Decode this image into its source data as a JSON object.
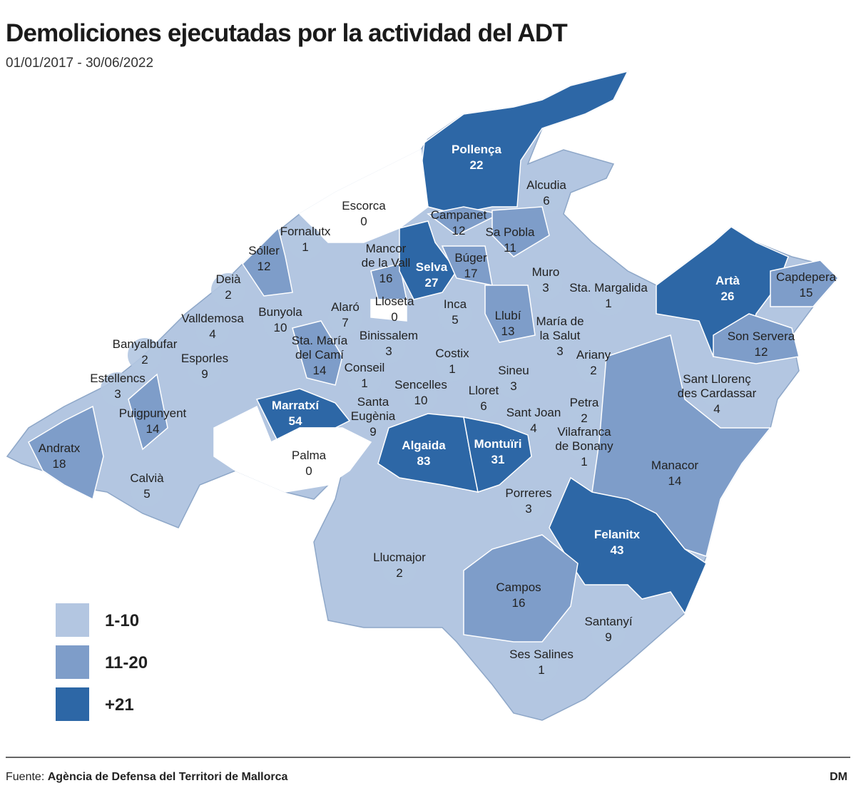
{
  "title": "Demoliciones ejecutadas por la actividad del ADT",
  "subtitle": "01/01/2017 - 30/06/2022",
  "legend": [
    {
      "label": "1-10",
      "color": "#b3c6e1"
    },
    {
      "label": "11-20",
      "color": "#7e9dc9"
    },
    {
      "label": "+21",
      "color": "#2d67a6"
    }
  ],
  "regions": [
    {
      "name": [
        "Pollença"
      ],
      "value": 22,
      "color": "#2d67a6"
    },
    {
      "name": [
        "Alcudia"
      ],
      "value": 6,
      "color": "#b3c6e1"
    },
    {
      "name": [
        "Escorca"
      ],
      "value": 0,
      "color": "#ffffff"
    },
    {
      "name": [
        "Campanet"
      ],
      "value": 12,
      "color": "#7e9dc9"
    },
    {
      "name": [
        "Sa Pobla"
      ],
      "value": 11,
      "color": "#7e9dc9"
    },
    {
      "name": [
        "Fornalutx"
      ],
      "value": 1,
      "color": "#b3c6e1"
    },
    {
      "name": [
        "Sóller"
      ],
      "value": 12,
      "color": "#7e9dc9"
    },
    {
      "name": [
        "Mancor",
        "de la Vall"
      ],
      "value": 16,
      "color": "#7e9dc9"
    },
    {
      "name": [
        "Selva"
      ],
      "value": 27,
      "color": "#2d67a6"
    },
    {
      "name": [
        "Búger"
      ],
      "value": 17,
      "color": "#7e9dc9"
    },
    {
      "name": [
        "Deià"
      ],
      "value": 2,
      "color": "#b3c6e1"
    },
    {
      "name": [
        "Muro"
      ],
      "value": 3,
      "color": "#b3c6e1"
    },
    {
      "name": [
        "Sta. Margalida"
      ],
      "value": 1,
      "color": "#b3c6e1"
    },
    {
      "name": [
        "Artà"
      ],
      "value": 26,
      "color": "#2d67a6"
    },
    {
      "name": [
        "Capdepera"
      ],
      "value": 15,
      "color": "#7e9dc9"
    },
    {
      "name": [
        "Lloseta"
      ],
      "value": 0,
      "color": "#ffffff"
    },
    {
      "name": [
        "Inca"
      ],
      "value": 5,
      "color": "#b3c6e1"
    },
    {
      "name": [
        "Alaró"
      ],
      "value": 7,
      "color": "#b3c6e1"
    },
    {
      "name": [
        "Bunyola"
      ],
      "value": 10,
      "color": "#b3c6e1"
    },
    {
      "name": [
        "Valldemosa"
      ],
      "value": 4,
      "color": "#b3c6e1"
    },
    {
      "name": [
        "Llubí"
      ],
      "value": 13,
      "color": "#7e9dc9"
    },
    {
      "name": [
        "María de",
        "la Salut"
      ],
      "value": 3,
      "color": "#b3c6e1"
    },
    {
      "name": [
        "Son Servera"
      ],
      "value": 12,
      "color": "#7e9dc9"
    },
    {
      "name": [
        "Banyalbufar"
      ],
      "value": 2,
      "color": "#b3c6e1"
    },
    {
      "name": [
        "Binissalem"
      ],
      "value": 3,
      "color": "#b3c6e1"
    },
    {
      "name": [
        "Sta. María",
        "del Camí"
      ],
      "value": 14,
      "color": "#7e9dc9"
    },
    {
      "name": [
        "Costix"
      ],
      "value": 1,
      "color": "#b3c6e1"
    },
    {
      "name": [
        "Ariany"
      ],
      "value": 2,
      "color": "#b3c6e1"
    },
    {
      "name": [
        "Esporles"
      ],
      "value": 9,
      "color": "#b3c6e1"
    },
    {
      "name": [
        "Conseil"
      ],
      "value": 1,
      "color": "#b3c6e1"
    },
    {
      "name": [
        "Sineu"
      ],
      "value": 3,
      "color": "#b3c6e1"
    },
    {
      "name": [
        "Estellencs"
      ],
      "value": 3,
      "color": "#b3c6e1"
    },
    {
      "name": [
        "Sant Llorenç",
        "des Cardassar"
      ],
      "value": 4,
      "color": "#b3c6e1"
    },
    {
      "name": [
        "Sencelles"
      ],
      "value": 10,
      "color": "#b3c6e1"
    },
    {
      "name": [
        "Lloret"
      ],
      "value": 6,
      "color": "#b3c6e1"
    },
    {
      "name": [
        "Marratxí"
      ],
      "value": 54,
      "color": "#2d67a6"
    },
    {
      "name": [
        "Santa",
        "Eugènia"
      ],
      "value": 9,
      "color": "#b3c6e1"
    },
    {
      "name": [
        "Petra"
      ],
      "value": 2,
      "color": "#b3c6e1"
    },
    {
      "name": [
        "Puigpunyent"
      ],
      "value": 14,
      "color": "#7e9dc9"
    },
    {
      "name": [
        "Sant Joan"
      ],
      "value": 4,
      "color": "#b3c6e1"
    },
    {
      "name": [
        "Vilafranca",
        "de Bonany"
      ],
      "value": 1,
      "color": "#b3c6e1"
    },
    {
      "name": [
        "Andratx"
      ],
      "value": 18,
      "color": "#7e9dc9"
    },
    {
      "name": [
        "Algaida"
      ],
      "value": 83,
      "color": "#2d67a6"
    },
    {
      "name": [
        "Montuïri"
      ],
      "value": 31,
      "color": "#2d67a6"
    },
    {
      "name": [
        "Palma"
      ],
      "value": 0,
      "color": "#ffffff"
    },
    {
      "name": [
        "Manacor"
      ],
      "value": 14,
      "color": "#7e9dc9"
    },
    {
      "name": [
        "Calvià"
      ],
      "value": 5,
      "color": "#b3c6e1"
    },
    {
      "name": [
        "Porreres"
      ],
      "value": 3,
      "color": "#b3c6e1"
    },
    {
      "name": [
        "Felanitx"
      ],
      "value": 43,
      "color": "#2d67a6"
    },
    {
      "name": [
        "Llucmajor"
      ],
      "value": 2,
      "color": "#b3c6e1"
    },
    {
      "name": [
        "Campos"
      ],
      "value": 16,
      "color": "#7e9dc9"
    },
    {
      "name": [
        "Santanyí"
      ],
      "value": 9,
      "color": "#b3c6e1"
    },
    {
      "name": [
        "Ses Salines"
      ],
      "value": 1,
      "color": "#b3c6e1"
    }
  ],
  "source": {
    "prefix": "Fuente:",
    "name": "Agència de Defensa del Territori de Mallorca"
  },
  "credit": "DM"
}
